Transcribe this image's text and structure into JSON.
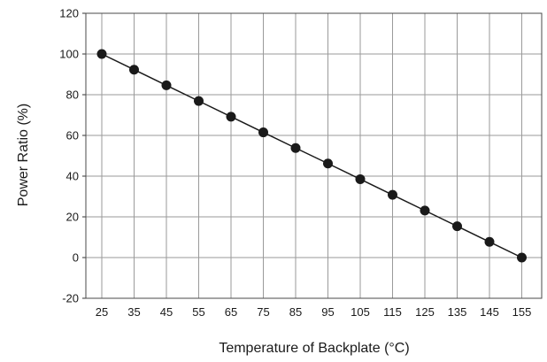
{
  "chart_data": {
    "type": "line",
    "title": "",
    "xlabel": "Temperature of Backplate (°C)",
    "ylabel": "Power Ratio (%)",
    "x": [
      25,
      35,
      45,
      55,
      65,
      75,
      85,
      95,
      105,
      115,
      125,
      135,
      145,
      155
    ],
    "x_tick_labels": [
      "25",
      "35",
      "45",
      "55",
      "65",
      "75",
      "85",
      "95",
      "105",
      "115",
      "125",
      "135",
      "145",
      "155"
    ],
    "y_ticks": [
      -20,
      0,
      20,
      40,
      60,
      80,
      100,
      120
    ],
    "y_tick_labels": [
      "-20",
      "0",
      "20",
      "40",
      "60",
      "80",
      "100",
      "120"
    ],
    "ylim": [
      -20,
      120
    ],
    "grid": true,
    "series": [
      {
        "values": [
          100,
          92.3,
          84.6,
          76.9,
          69.2,
          61.5,
          53.8,
          46.2,
          38.5,
          30.8,
          23.1,
          15.4,
          7.7,
          0
        ],
        "color": "#1a1a1a",
        "marker": "filled-circle"
      }
    ]
  }
}
